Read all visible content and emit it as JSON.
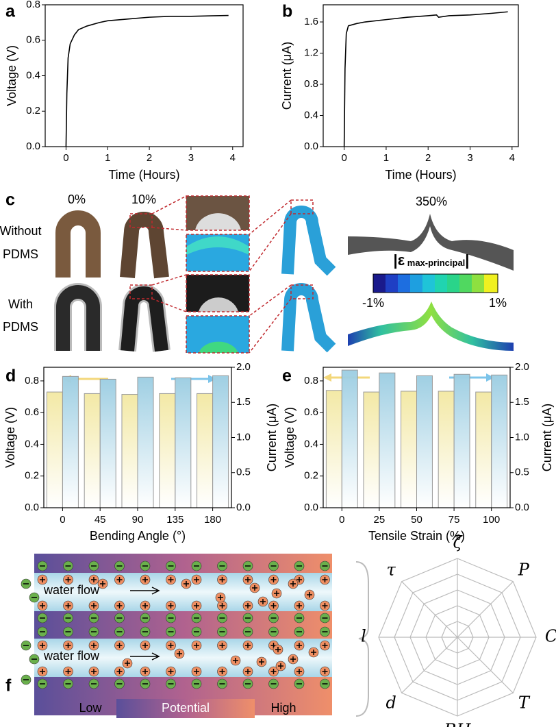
{
  "panel_labels": [
    "a",
    "b",
    "c",
    "d",
    "e",
    "f"
  ],
  "chart_data": [
    {
      "type": "line",
      "ylabel": "Voltage (V)",
      "xlabel": "Time (Hours)",
      "color": "#000000",
      "x": [
        0,
        0.02,
        0.05,
        0.1,
        0.2,
        0.3,
        0.5,
        0.8,
        1.0,
        1.5,
        2.0,
        2.5,
        3.0,
        3.5,
        3.9
      ],
      "values": [
        0,
        0.3,
        0.5,
        0.58,
        0.63,
        0.66,
        0.68,
        0.7,
        0.71,
        0.72,
        0.73,
        0.735,
        0.735,
        0.738,
        0.74
      ],
      "xlim": [
        -0.5,
        4.25
      ],
      "xticks": [
        0,
        1,
        2,
        3,
        4
      ],
      "ylim": [
        0,
        0.8
      ],
      "yticks": [
        {
          "value": 0,
          "label": "0.0"
        },
        0.2,
        0.4,
        0.6,
        0.8
      ]
    },
    {
      "type": "line",
      "ylabel": "Current (μA)",
      "xlabel": "Time (Hours)",
      "color": "#000000",
      "x": [
        0,
        0.02,
        0.05,
        0.1,
        0.3,
        0.5,
        1.0,
        1.5,
        2.0,
        2.2,
        2.25,
        2.5,
        3.0,
        3.5,
        3.9
      ],
      "values": [
        0,
        1.0,
        1.45,
        1.55,
        1.58,
        1.6,
        1.63,
        1.66,
        1.68,
        1.69,
        1.66,
        1.68,
        1.69,
        1.71,
        1.73
      ],
      "xlim": [
        -0.5,
        4.15
      ],
      "xticks": [
        0,
        1,
        2,
        3,
        4
      ],
      "ylim": [
        0,
        1.82
      ],
      "yticks": [
        {
          "value": 0,
          "label": "0.0"
        },
        0.4,
        0.8,
        1.2,
        1.6
      ]
    },
    {
      "type": "bar",
      "xlabel": "Bending Angle (°)",
      "ylabel": "Voltage (V)",
      "y2label": "Current (μA)",
      "categories": [
        "0",
        "45",
        "90",
        "135",
        "180"
      ],
      "series": [
        {
          "color": "#f3e9a6",
          "values": [
            0.73,
            0.72,
            0.715,
            0.72,
            0.72
          ]
        },
        {
          "color": "#9fcfe3",
          "axis": "y2",
          "values": [
            1.87,
            1.83,
            1.86,
            1.85,
            1.88
          ]
        }
      ],
      "ylim": [
        0,
        0.886
      ],
      "yticks": [
        {
          "value": 0,
          "label": "0.0"
        },
        0.2,
        0.4,
        0.6,
        0.8
      ],
      "y2lim": [
        0,
        2
      ],
      "y2ticks": [
        {
          "value": 0,
          "label": "0.0"
        },
        0.5,
        {
          "value": 1,
          "label": "1.0"
        },
        1.5,
        {
          "value": 2,
          "label": "2.0"
        }
      ]
    },
    {
      "type": "bar",
      "xlabel": "Tensile Strain (%)",
      "ylabel": "Voltage (V)",
      "y2label": "Current (μA)",
      "categories": [
        "0",
        "25",
        "50",
        "75",
        "100"
      ],
      "series": [
        {
          "color": "#f3e9a6",
          "values": [
            0.74,
            0.73,
            0.735,
            0.735,
            0.73
          ]
        },
        {
          "color": "#9fcfe3",
          "axis": "y2",
          "values": [
            1.96,
            1.92,
            1.88,
            1.9,
            1.89
          ]
        }
      ],
      "ylim": [
        0,
        0.886
      ],
      "yticks": [
        {
          "value": 0,
          "label": "0.0"
        },
        0.2,
        0.4,
        0.6,
        0.8
      ],
      "y2lim": [
        0,
        2
      ],
      "y2ticks": [
        {
          "value": 0,
          "label": "0.0"
        },
        0.5,
        {
          "value": 1,
          "label": "1.0"
        },
        1.5,
        {
          "value": 2,
          "label": "2.0"
        }
      ]
    }
  ],
  "panel_c": {
    "strains": [
      "0%",
      "10%",
      "350%"
    ],
    "rows": [
      [
        "Without",
        "PDMS"
      ],
      [
        "With",
        "PDMS"
      ]
    ],
    "colorbar": {
      "open": "|ε",
      "subscript": " max-principal",
      "close": "|",
      "min": "-1%",
      "max": "1%"
    }
  },
  "panel_f": {
    "flows": [
      "water flow",
      "water flow"
    ],
    "potential": {
      "low": "Low",
      "title": "Potential",
      "high": "High"
    },
    "radar_axes": [
      "ζ",
      "P",
      "C",
      "T",
      "RH",
      "d",
      "l",
      "τ"
    ]
  }
}
